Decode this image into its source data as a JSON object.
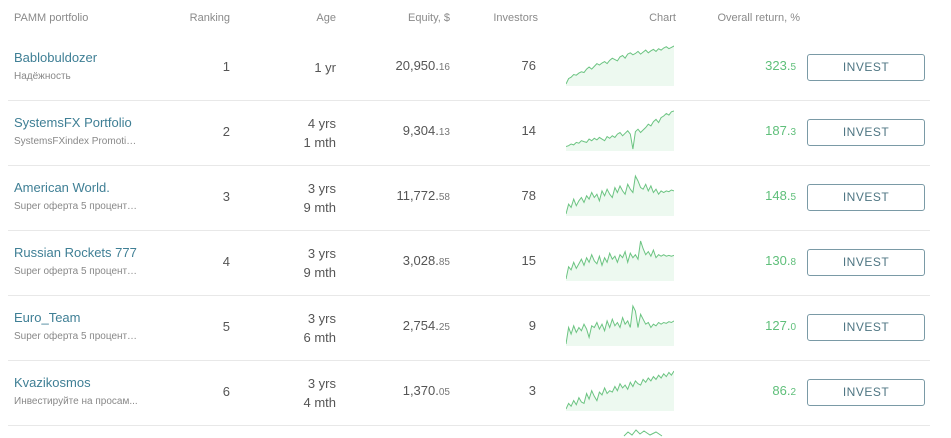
{
  "header": {
    "name": "PAMM portfolio",
    "ranking": "Ranking",
    "age": "Age",
    "equity": "Equity, $",
    "investors": "Investors",
    "chart": "Chart",
    "return": "Overall return, %"
  },
  "colors": {
    "line": "#6cc482",
    "fill": "#e6f6ea",
    "link": "#3f7f95",
    "positive": "#5fbf7a"
  },
  "rows": [
    {
      "name": "Bablobuldozer",
      "sub": "Надёжность",
      "rank": "1",
      "age_line1": "1 yr",
      "age_line2": "",
      "equity_int": "20,950.",
      "equity_dec": "16",
      "investors": "76",
      "return_int": "323.",
      "return_dec": "5",
      "button": "INVEST",
      "chart": [
        0,
        8,
        10,
        14,
        13,
        16,
        18,
        17,
        22,
        25,
        22,
        26,
        30,
        28,
        31,
        33,
        30,
        35,
        38,
        36,
        34,
        40,
        42,
        38,
        44,
        46,
        43,
        45,
        48,
        44,
        47,
        50,
        46,
        49,
        51,
        48,
        52,
        50,
        53,
        55,
        52,
        54,
        56
      ]
    },
    {
      "name": "SystemsFX Portfolio",
      "sub": "SystemsFXindex Promotio...",
      "rank": "2",
      "age_line1": "4 yrs",
      "age_line2": "1 mth",
      "equity_int": "9,304.",
      "equity_dec": "13",
      "investors": "14",
      "return_int": "187.",
      "return_dec": "3",
      "button": "INVEST",
      "chart": [
        15,
        16,
        18,
        17,
        20,
        19,
        22,
        21,
        20,
        24,
        22,
        25,
        23,
        26,
        24,
        22,
        27,
        25,
        28,
        26,
        30,
        32,
        28,
        31,
        34,
        30,
        12,
        33,
        36,
        32,
        35,
        38,
        42,
        40,
        45,
        48,
        44,
        50,
        52,
        55,
        53,
        57,
        58
      ]
    },
    {
      "name": "American World.",
      "sub": "Super оферта 5 процентов...",
      "rank": "3",
      "age_line1": "3 yrs",
      "age_line2": "9 mth",
      "equity_int": "11,772.",
      "equity_dec": "58",
      "investors": "78",
      "return_int": "148.",
      "return_dec": "5",
      "button": "INVEST",
      "chart": [
        10,
        22,
        18,
        28,
        20,
        26,
        30,
        24,
        32,
        28,
        36,
        30,
        34,
        26,
        38,
        32,
        40,
        34,
        30,
        42,
        36,
        44,
        38,
        34,
        46,
        40,
        36,
        56,
        50,
        42,
        40,
        46,
        38,
        44,
        36,
        40,
        34,
        38,
        36,
        38,
        37,
        39,
        38
      ]
    },
    {
      "name": "Russian Rockets 777",
      "sub": "Super оферта 5 процентов...",
      "rank": "4",
      "age_line1": "3 yrs",
      "age_line2": "9 mth",
      "equity_int": "3,028.",
      "equity_dec": "85",
      "investors": "15",
      "return_int": "130.",
      "return_dec": "8",
      "button": "INVEST",
      "chart": [
        8,
        24,
        20,
        30,
        22,
        28,
        34,
        26,
        36,
        30,
        40,
        32,
        28,
        38,
        26,
        36,
        30,
        42,
        34,
        38,
        30,
        40,
        36,
        44,
        30,
        42,
        36,
        40,
        34,
        58,
        48,
        40,
        44,
        38,
        46,
        36,
        40,
        38,
        40,
        38,
        39,
        38,
        39
      ]
    },
    {
      "name": "Euro_Team",
      "sub": "Super оферта 5 процентов...",
      "rank": "5",
      "age_line1": "3 yrs",
      "age_line2": "6 mth",
      "equity_int": "2,754.",
      "equity_dec": "25",
      "investors": "9",
      "return_int": "127.",
      "return_dec": "0",
      "button": "INVEST",
      "chart": [
        10,
        30,
        22,
        32,
        24,
        30,
        26,
        34,
        28,
        18,
        32,
        30,
        36,
        28,
        34,
        26,
        38,
        30,
        40,
        32,
        36,
        30,
        42,
        34,
        38,
        30,
        56,
        50,
        30,
        46,
        40,
        34,
        36,
        30,
        34,
        32,
        36,
        34,
        36,
        35,
        37,
        36,
        38
      ]
    },
    {
      "name": "Kvazikosmos",
      "sub": "Инвестируйте на просам...",
      "rank": "6",
      "age_line1": "3 yrs",
      "age_line2": "4 mth",
      "equity_int": "1,370.",
      "equity_dec": "05",
      "investors": "3",
      "return_int": "86.",
      "return_dec": "2",
      "button": "INVEST",
      "chart": [
        4,
        12,
        8,
        16,
        10,
        20,
        14,
        12,
        26,
        18,
        30,
        22,
        16,
        28,
        24,
        34,
        26,
        30,
        28,
        36,
        30,
        40,
        34,
        38,
        32,
        42,
        36,
        44,
        40,
        38,
        46,
        42,
        48,
        44,
        50,
        46,
        52,
        48,
        54,
        50,
        56,
        52,
        58
      ]
    }
  ]
}
